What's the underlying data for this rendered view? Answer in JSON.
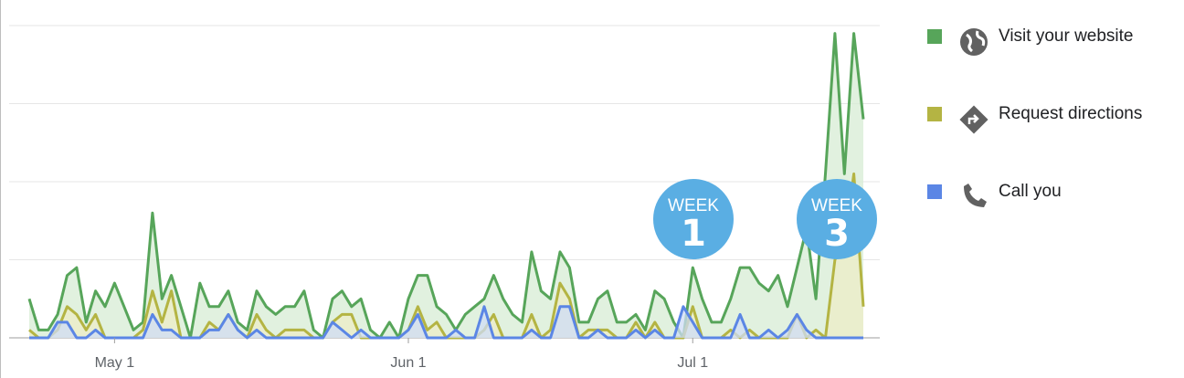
{
  "chart_data": {
    "type": "line",
    "categories": [
      null,
      null,
      null,
      null,
      null,
      null,
      null,
      null,
      null,
      "May 1",
      null,
      null,
      null,
      null,
      null,
      null,
      null,
      null,
      null,
      null,
      null,
      null,
      null,
      null,
      null,
      null,
      null,
      null,
      null,
      null,
      null,
      null,
      null,
      null,
      null,
      null,
      null,
      null,
      null,
      null,
      "Jun 1",
      null,
      null,
      null,
      null,
      null,
      null,
      null,
      null,
      null,
      null,
      null,
      null,
      null,
      null,
      null,
      null,
      null,
      null,
      null,
      null,
      null,
      null,
      null,
      null,
      null,
      null,
      null,
      null,
      null,
      "Jul 1",
      null,
      null,
      null,
      null,
      null,
      null,
      null,
      null,
      null,
      null,
      null,
      null,
      null,
      null,
      null,
      null,
      null,
      null
    ],
    "series": [
      {
        "name": "Visit your website",
        "color": "#57a55a",
        "fill": "#d7ecd4",
        "values": [
          0.5,
          0.1,
          0.1,
          0.3,
          0.8,
          0.9,
          0.2,
          0.6,
          0.4,
          0.7,
          0.4,
          0.1,
          0.2,
          1.6,
          0.5,
          0.8,
          0.4,
          0,
          0.7,
          0.4,
          0.4,
          0.6,
          0.2,
          0.1,
          0.6,
          0.4,
          0.3,
          0.4,
          0.4,
          0.6,
          0.1,
          0,
          0.5,
          0.6,
          0.4,
          0.5,
          0.1,
          0,
          0.2,
          0,
          0.5,
          0.8,
          0.8,
          0.4,
          0.3,
          0.1,
          0.3,
          0.4,
          0.5,
          0.8,
          0.5,
          0.3,
          0.2,
          1.1,
          0.6,
          0.5,
          1.1,
          0.9,
          0.2,
          0.2,
          0.5,
          0.6,
          0.2,
          0.2,
          0.3,
          0.1,
          0.6,
          0.5,
          0.2,
          0,
          0.9,
          0.5,
          0.2,
          0.2,
          0.5,
          0.9,
          0.9,
          0.7,
          0.6,
          0.8,
          0.4,
          0.9,
          1.4,
          0.5,
          2.1,
          3.9,
          2.1,
          3.9,
          2.8
        ]
      },
      {
        "name": "Request directions",
        "color": "#b4b443",
        "fill": "#ececc7",
        "values": [
          0.1,
          0,
          0,
          0.1,
          0.4,
          0.3,
          0.1,
          0.3,
          0,
          0,
          0,
          0,
          0.1,
          0.6,
          0.2,
          0.6,
          0,
          0,
          0,
          0.2,
          0.1,
          0.3,
          0.1,
          0,
          0.3,
          0.1,
          0,
          0.1,
          0.1,
          0.1,
          0,
          0,
          0.2,
          0.3,
          0.3,
          0,
          0,
          0,
          0,
          0,
          0.1,
          0.4,
          0.1,
          0.2,
          0,
          0,
          0,
          0,
          0.1,
          0.3,
          0,
          0,
          0,
          0.3,
          0,
          0.1,
          0.7,
          0.5,
          0,
          0.1,
          0.1,
          0.1,
          0,
          0,
          0.2,
          0,
          0.2,
          0,
          0,
          0,
          0.4,
          0,
          0,
          0,
          0.1,
          0,
          0.1,
          0,
          0,
          0,
          0,
          0.3,
          0,
          0.1,
          0,
          1.0,
          1.2,
          2.1,
          0.4
        ]
      },
      {
        "name": "Call you",
        "color": "#5b86e5",
        "fill": "#cfdcf6",
        "values": [
          0,
          0,
          0,
          0.2,
          0.2,
          0,
          0,
          0.1,
          0,
          0,
          0,
          0,
          0,
          0.3,
          0.1,
          0.1,
          0,
          0,
          0,
          0.1,
          0.1,
          0.3,
          0.1,
          0,
          0.1,
          0,
          0,
          0,
          0,
          0,
          0,
          0,
          0.2,
          0.1,
          0,
          0.1,
          0,
          0,
          0,
          0,
          0.1,
          0.3,
          0,
          0,
          0,
          0.1,
          0,
          0,
          0.4,
          0,
          0,
          0,
          0,
          0.1,
          0,
          0,
          0.4,
          0.4,
          0,
          0,
          0.1,
          0,
          0,
          0,
          0.1,
          0,
          0.1,
          0,
          0,
          0.4,
          0.2,
          0,
          0,
          0,
          0,
          0.3,
          0,
          0,
          0.1,
          0,
          0.1,
          0.3,
          0.1,
          0,
          0,
          0,
          0,
          0,
          0
        ]
      }
    ],
    "ylim": [
      0,
      4
    ],
    "yticks": [
      0,
      1,
      2,
      3,
      4
    ],
    "grid": true,
    "annotations": [
      {
        "label": "WEEK",
        "number": "1"
      },
      {
        "label": "WEEK",
        "number": "3"
      }
    ]
  }
}
